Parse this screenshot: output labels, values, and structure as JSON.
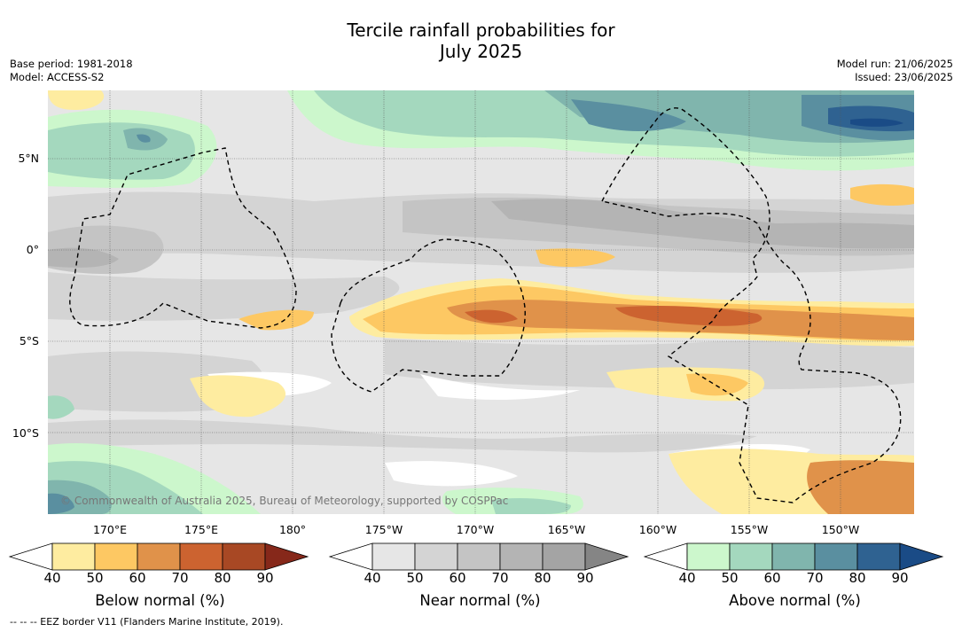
{
  "title": {
    "line1": "Tercile rainfall probabilities for",
    "line2": "July 2025"
  },
  "meta_left": {
    "base_period": "Base period: 1981-2018",
    "model": "Model: ACCESS-S2"
  },
  "meta_right": {
    "model_run": "Model run: 21/06/2025",
    "issued": "Issued: 23/06/2025"
  },
  "map": {
    "lat_labels": [
      "5°N",
      "0°",
      "5°S",
      "10°S"
    ],
    "lon_labels": [
      "170°E",
      "175°E",
      "180°",
      "175°W",
      "170°W",
      "165°W",
      "160°W",
      "155°W",
      "150°W"
    ],
    "copyright": "© Commonwealth of Australia 2025, Bureau of Meteorology, supported by COSPPac",
    "extent": {
      "lon_min": 166.3,
      "lon_max": 213.7,
      "lat_min": -14.6,
      "lat_max": 8.6
    },
    "has_gridlines": true
  },
  "colorbars": {
    "below": {
      "title": "Below normal (%)",
      "ticks": [
        "40",
        "50",
        "60",
        "70",
        "80",
        "90"
      ],
      "colors": [
        "#ffffff",
        "#feeca0",
        "#fdc863",
        "#e0924a",
        "#cc6330",
        "#a84824",
        "#86281a"
      ]
    },
    "near": {
      "title": "Near normal (%)",
      "ticks": [
        "40",
        "50",
        "60",
        "70",
        "80",
        "90"
      ],
      "colors": [
        "#ffffff",
        "#e6e6e6",
        "#d4d4d4",
        "#c4c4c4",
        "#b4b4b4",
        "#a4a4a4",
        "#858585"
      ]
    },
    "above": {
      "title": "Above normal (%)",
      "ticks": [
        "40",
        "50",
        "60",
        "70",
        "80",
        "90"
      ],
      "colors": [
        "#ffffff",
        "#ccf7cc",
        "#a4d8be",
        "#80b5ad",
        "#5a8fa0",
        "#2f6291",
        "#1a4b86"
      ]
    }
  },
  "eez_note": "--  --  -- EEZ border V11 (Flanders Marine Institute, 2019)."
}
